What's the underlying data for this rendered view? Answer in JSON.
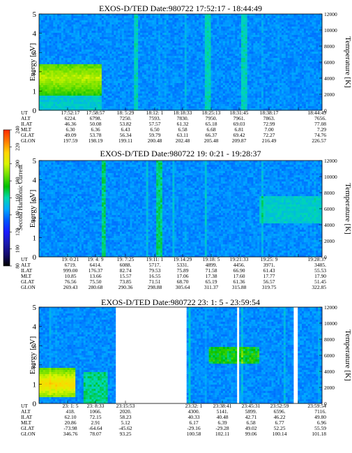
{
  "colorbar": {
    "label": "Second Harmonic Current",
    "ticks": [
      "240",
      "220",
      "200",
      "180",
      "160",
      "140",
      "120",
      "100",
      "80"
    ],
    "colors": [
      "#ff2a00",
      "#ff7a00",
      "#ffd500",
      "#d9f500",
      "#6ee000",
      "#00c000",
      "#00d8b0",
      "#00a8ff",
      "#0055ff",
      "#1a1aff",
      "#1a1ab0",
      "#140a6e",
      "#000000"
    ]
  },
  "panels": [
    {
      "title": "EXOS-D/TED   Date:980722  17:52:17 - 18:44:49",
      "ylabel": "Energy [eV]",
      "y2label": "Temperature [K]",
      "yticks": [
        "5",
        "4",
        "3",
        "2",
        "1",
        "0"
      ],
      "y2ticks": [
        "12000",
        "10000",
        "8000",
        "6000",
        "4000",
        "2000",
        "0"
      ],
      "ephem_labels": [
        "UT",
        "ALT",
        "ILAT",
        "MLT",
        "GLAT",
        "GLON"
      ],
      "ephem_columns": [
        [
          "17:52:17",
          "6224.",
          "46.36",
          "6.30",
          "49.09",
          "197.59"
        ],
        [
          "17:58:57",
          "6798.",
          "50.08",
          "6.36",
          "53.78",
          "198.19"
        ],
        [
          "18: 5:29",
          "7250.",
          "53.82",
          "6.43",
          "56.34",
          "199.11"
        ],
        [
          "18:12: 1",
          "7593.",
          "57.57",
          "6.50",
          "59.79",
          "200.48"
        ],
        [
          "18:18:33",
          "7830.",
          "61.32",
          "6.58",
          "63.11",
          "202.48"
        ],
        [
          "18:25:13",
          "7950.",
          "65.18",
          "6.68",
          "66.37",
          "205.48"
        ],
        [
          "18:31:45",
          "7961.",
          "69.03",
          "6.81",
          "69.42",
          "209.87"
        ],
        [
          "18:38:17",
          "7863.",
          "72.99",
          "7.00",
          "72.27",
          "216.49"
        ],
        [
          "18:44:49",
          "7656.",
          "77.08",
          "7.29",
          "74.76",
          "226.57"
        ]
      ]
    },
    {
      "title": "EXOS-D/TED   Date:980722  19: 0:21 - 19:28:37",
      "ylabel": "Energy [eV]",
      "y2label": "Temperature [K]",
      "yticks": [
        "5",
        "4",
        "3",
        "2",
        "1",
        "0"
      ],
      "y2ticks": [
        "12000",
        "10000",
        "8000",
        "6000",
        "4000",
        "2000",
        "0"
      ],
      "ephem_labels": [
        "UT",
        "ALT",
        "ILAT",
        "MLT",
        "GLAT",
        "GLON"
      ],
      "ephem_columns": [
        [
          "19: 0:21",
          "6719.",
          "999.00",
          "10.85",
          "76.56",
          "269.43"
        ],
        [
          "19: 4: 9",
          "6414.",
          "176.37",
          "13.66",
          "75.50",
          "280.68"
        ],
        [
          "19: 7:25",
          "6088.",
          "82.74",
          "15.57",
          "73.85",
          "290.36"
        ],
        [
          "19:11: 1",
          "5717.",
          "79.53",
          "16.55",
          "71.51",
          "298.88"
        ],
        [
          "19:14:29",
          "5331.",
          "75.89",
          "17.06",
          "68.70",
          "305.64"
        ],
        [
          "19:18: 5",
          "4899.",
          "71.58",
          "17.38",
          "65.19",
          "311.37"
        ],
        [
          "19:21:33",
          "4456.",
          "66.90",
          "17.60",
          "61.36",
          "315.88"
        ],
        [
          "19:25: 9",
          "3971.",
          "61.43",
          "17.77",
          "56.57",
          "319.75"
        ],
        [
          "19:28:37",
          "3485.",
          "55.53",
          "17.90",
          "51.45",
          "322.85"
        ]
      ]
    },
    {
      "title": "EXOS-D/TED   Date:980722  23: 1: 5 - 23:59:54",
      "ylabel": "Energy [eV]",
      "y2label": "Temperature [K]",
      "yticks": [
        "5",
        "4",
        "3",
        "2",
        "1",
        "0"
      ],
      "y2ticks": [
        "12000",
        "10000",
        "8000",
        "6000",
        "4000",
        "2000",
        "0"
      ],
      "ephem_labels": [
        "UT",
        "ALT",
        "ILAT",
        "MLT",
        "GLAT",
        "GLON"
      ],
      "ephem_columns": [
        [
          "23: 1: 5",
          "418.",
          "62.10",
          "20.86",
          "-73.98",
          "346.76"
        ],
        [
          "23: 8:33",
          "1066.",
          "72.15",
          "2.91",
          "-64.64",
          "78.07"
        ],
        [
          "23:15:53",
          "2020.",
          "58.23",
          "5.12",
          "-45.62",
          "93.25"
        ],
        [
          "23:32: 1",
          "4300.",
          "40.33",
          "6.17",
          "-29.16",
          "100.58"
        ],
        [
          "23:38:41",
          "5141.",
          "40.48",
          "6.39",
          "-29.28",
          "102.11"
        ],
        [
          "23:45:31",
          "5899.",
          "42.71",
          "6.58",
          "49.02",
          "99.06"
        ],
        [
          "23:52:59",
          "6596.",
          "46.22",
          "6.77",
          "52.25",
          "100.14"
        ],
        [
          "23:59:54",
          "7116.",
          "49.80",
          "6.96",
          "55.59",
          "101.18"
        ]
      ]
    }
  ],
  "chart_data": [
    {
      "type": "heatmap",
      "title": "EXOS-D/TED   Date:980722  17:52:17 - 18:44:49",
      "ylabel": "Energy [eV]",
      "y2label": "Temperature [K]",
      "x_range": [
        "17:52:17",
        "18:44:49"
      ],
      "ylim": [
        0,
        5
      ],
      "y2lim": [
        0,
        12000
      ],
      "colorbar_label": "Second Harmonic Current",
      "colorbar_range": [
        80,
        240
      ],
      "gaps": []
    },
    {
      "type": "heatmap",
      "title": "EXOS-D/TED   Date:980722  19: 0:21 - 19:28:37",
      "ylabel": "Energy [eV]",
      "y2label": "Temperature [K]",
      "x_range": [
        "19: 0:21",
        "19:28:37"
      ],
      "ylim": [
        0,
        5
      ],
      "y2lim": [
        0,
        12000
      ],
      "colorbar_label": "Second Harmonic Current",
      "colorbar_range": [
        80,
        240
      ],
      "gaps": []
    },
    {
      "type": "heatmap",
      "title": "EXOS-D/TED   Date:980722  23: 1: 5 - 23:59:54",
      "ylabel": "Energy [eV]",
      "y2label": "Temperature [K]",
      "x_range": [
        "23: 1: 5",
        "23:59:54"
      ],
      "ylim": [
        0,
        5
      ],
      "y2lim": [
        0,
        12000
      ],
      "colorbar_label": "Second Harmonic Current",
      "colorbar_range": [
        80,
        240
      ],
      "gaps": [
        [
          "23:17:00",
          "23:31:40"
        ],
        [
          "23:42:10",
          "23:42:40"
        ],
        [
          "23:54:10",
          "23:54:40"
        ]
      ]
    }
  ]
}
